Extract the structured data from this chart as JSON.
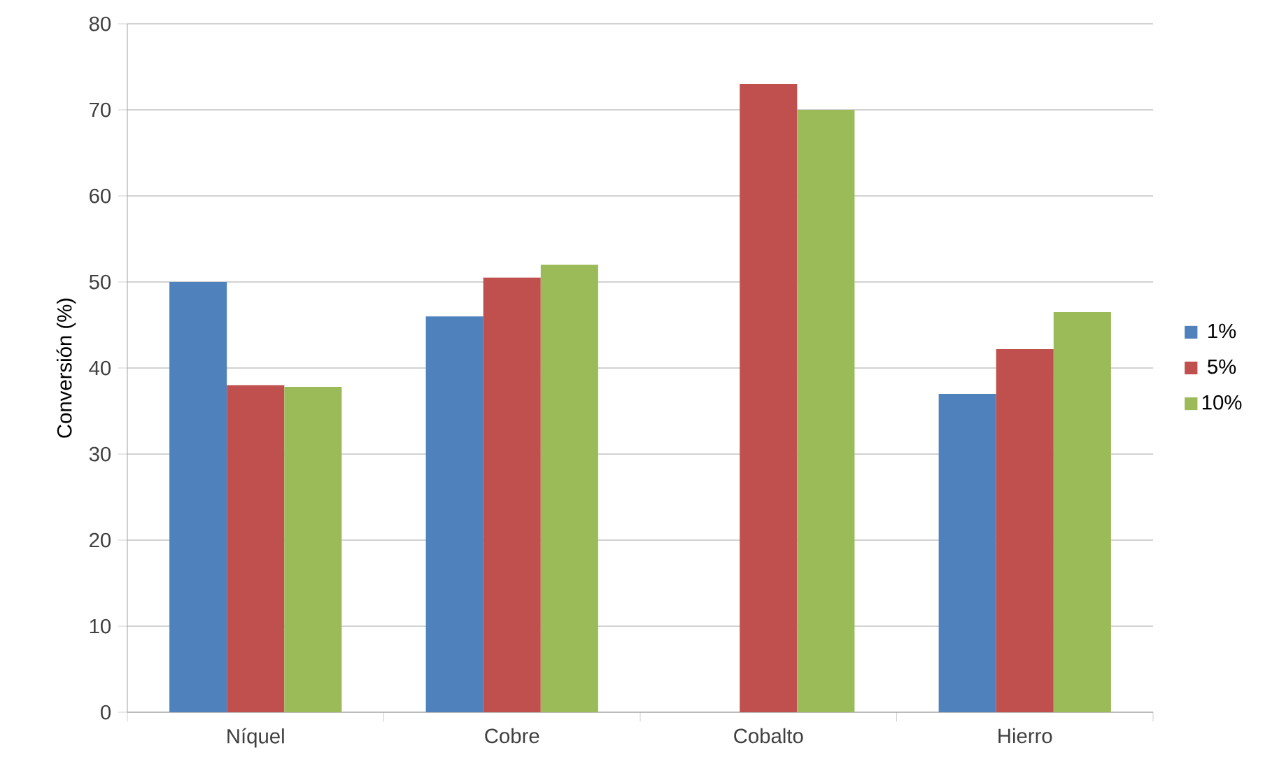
{
  "chart_data": {
    "type": "bar",
    "ylabel": "Conversión (%)",
    "categories": [
      "Níquel",
      "Cobre",
      "Cobalto",
      "Hierro"
    ],
    "series": [
      {
        "name": "1%",
        "color": "#4f81bd",
        "values": [
          50,
          46,
          null,
          37
        ]
      },
      {
        "name": "5%",
        "color": "#c0504d",
        "values": [
          38,
          50.5,
          73,
          42.2
        ]
      },
      {
        "name": "10%",
        "color": "#9bbb59",
        "values": [
          37.8,
          52,
          70,
          46.5
        ]
      }
    ],
    "ylim": [
      0,
      80
    ],
    "yticks": [
      0,
      10,
      20,
      30,
      40,
      50,
      60,
      70,
      80
    ],
    "grid": "y",
    "legend": "right"
  }
}
